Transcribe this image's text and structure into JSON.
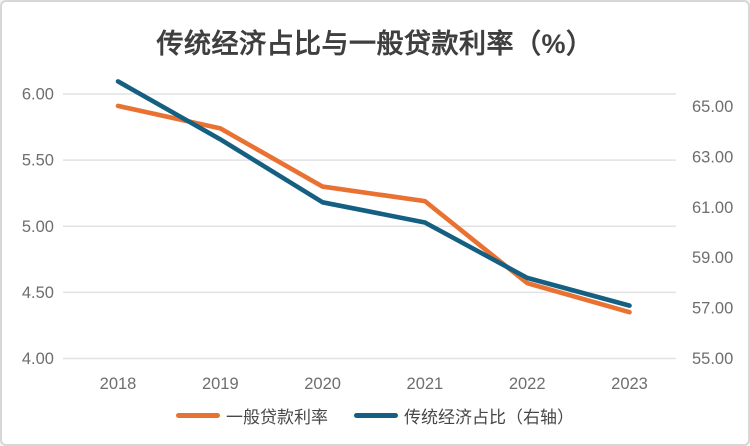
{
  "chart_data": {
    "type": "line",
    "title": "传统经济占比与一般贷款利率（%）",
    "categories": [
      "2018",
      "2019",
      "2020",
      "2021",
      "2022",
      "2023"
    ],
    "series": [
      {
        "name": "一般贷款利率",
        "axis": "left",
        "color": "#E97132",
        "values": [
          5.91,
          5.74,
          5.3,
          5.19,
          4.57,
          4.35
        ]
      },
      {
        "name": "传统经济占比（右轴）",
        "axis": "right",
        "color": "#156082",
        "values": [
          66.0,
          63.7,
          61.2,
          60.4,
          58.2,
          57.1
        ]
      }
    ],
    "left_axis": {
      "min": 4.0,
      "max": 6.0,
      "major": 0.5,
      "tick_labels": [
        "6.00",
        "5.50",
        "5.00",
        "4.50",
        "4.00"
      ],
      "tick_values": [
        6.0,
        5.5,
        5.0,
        4.5,
        4.0
      ]
    },
    "right_axis": {
      "min": 55.0,
      "max": 65.5,
      "major": 2.0,
      "tick_labels": [
        "65.00",
        "63.00",
        "61.00",
        "59.00",
        "57.00",
        "55.00"
      ],
      "tick_values": [
        65.0,
        63.0,
        61.0,
        59.0,
        57.0,
        55.0
      ]
    },
    "grid": "horizontal-only",
    "legend_position": "bottom",
    "colors": {
      "gridline": "#e2e2e2",
      "axis_text": "#6e6e6e",
      "title_text": "#3f3f3f",
      "legend_text": "#474747",
      "background": "#ffffff",
      "card_border": "#d7d7d7"
    }
  }
}
